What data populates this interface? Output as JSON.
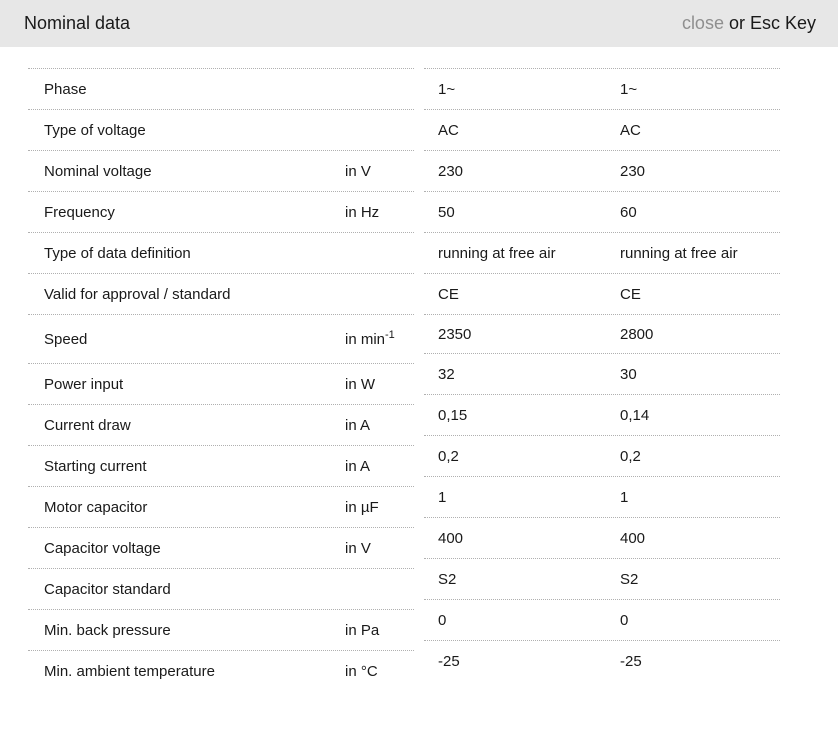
{
  "header": {
    "title": "Nominal data",
    "close_label": "close",
    "close_suffix": " or Esc Key"
  },
  "colors": {
    "header_bg": "#e7e7e7",
    "close_link": "#8f8f8f",
    "text": "#1a1a1a",
    "row_separator": "#b0b0b0"
  },
  "table": {
    "rows": [
      {
        "label": "Phase",
        "unit": "",
        "values": [
          "1~",
          "1~"
        ]
      },
      {
        "label": "Type of voltage",
        "unit": "",
        "values": [
          "AC",
          "AC"
        ]
      },
      {
        "label": "Nominal voltage",
        "unit": "in V",
        "values": [
          "230",
          "230"
        ]
      },
      {
        "label": "Frequency",
        "unit": "in Hz",
        "values": [
          "50",
          "60"
        ]
      },
      {
        "label": "Type of data definition",
        "unit": "",
        "values": [
          "running at free air",
          "running at free air"
        ]
      },
      {
        "label": "Valid for approval / standard",
        "unit": "",
        "values": [
          "CE",
          "CE"
        ]
      },
      {
        "label": "Speed",
        "unit": "in min",
        "unit_sup": "-1",
        "values": [
          "2350",
          "2800"
        ]
      },
      {
        "label": "Power input",
        "unit": "in W",
        "values": [
          "32",
          "30"
        ]
      },
      {
        "label": "Current draw",
        "unit": "in A",
        "values": [
          "0,15",
          "0,14"
        ]
      },
      {
        "label": "Starting current",
        "unit": "in A",
        "values": [
          "0,2",
          "0,2"
        ]
      },
      {
        "label": "Motor capacitor",
        "unit": "in µF",
        "values": [
          "1",
          "1"
        ]
      },
      {
        "label": "Capacitor voltage",
        "unit": "in V",
        "values": [
          "400",
          "400"
        ]
      },
      {
        "label": "Capacitor standard",
        "unit": "",
        "values": [
          "S2",
          "S2"
        ]
      },
      {
        "label": "Min. back pressure",
        "unit": "in Pa",
        "values": [
          "0",
          "0"
        ]
      },
      {
        "label": "Min. ambient temperature",
        "unit": "in °C",
        "values": [
          "-25",
          "-25"
        ]
      }
    ]
  }
}
